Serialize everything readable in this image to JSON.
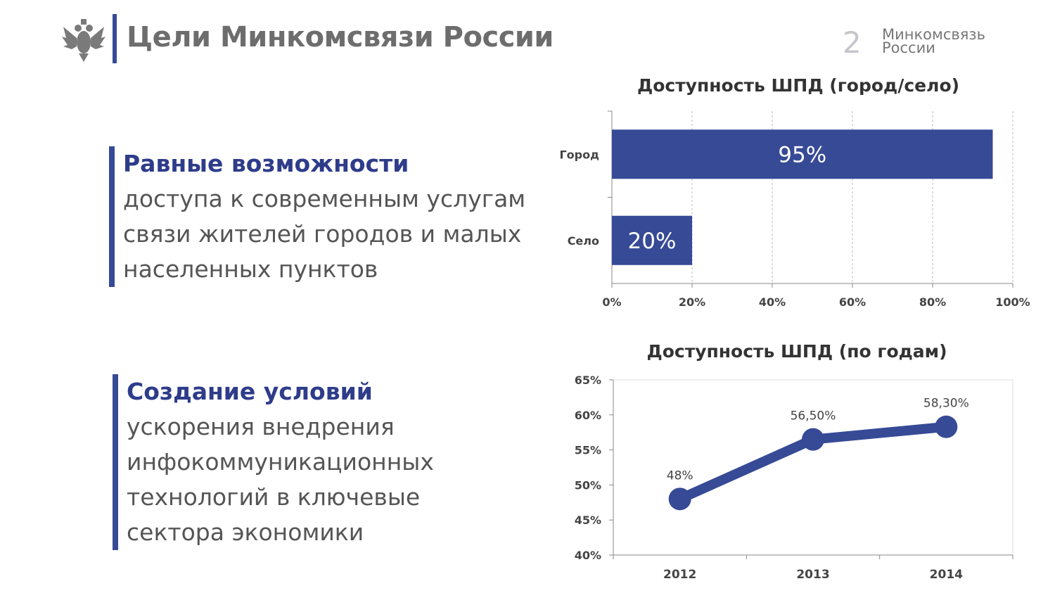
{
  "header": {
    "title": "Цели Минкомсвязи России",
    "page_number": "2",
    "brand_line1": "Минкомсвязь",
    "brand_line2": "России"
  },
  "blocks": [
    {
      "head": "Равные возможности",
      "body": "доступа к современным услугам связи жителей городов и малых населенных пунктов"
    },
    {
      "head": "Создание условий",
      "body": "ускорения внедрения инфокоммуникационных технологий в  ключевые сектора экономики"
    }
  ],
  "colors": {
    "accent": "#364a96",
    "title": "#6d6d6d",
    "text": "#555555"
  },
  "chart_data": [
    {
      "type": "bar",
      "orientation": "horizontal",
      "title": "Доступность ШПД (город/село)",
      "categories": [
        "Город",
        "Село"
      ],
      "values": [
        95,
        20
      ],
      "data_labels": [
        "95%",
        "20%"
      ],
      "xlim": [
        0,
        100
      ],
      "xticks": [
        "0%",
        "20%",
        "40%",
        "60%",
        "80%",
        "100%"
      ],
      "grid": true
    },
    {
      "type": "line",
      "title": "Доступность ШПД (по годам)",
      "categories": [
        "2012",
        "2013",
        "2014"
      ],
      "values": [
        48,
        56.5,
        58.3
      ],
      "data_labels": [
        "48%",
        "56,50%",
        "58,30%"
      ],
      "ylim": [
        40,
        65
      ],
      "yticks": [
        "40%",
        "45%",
        "50%",
        "55%",
        "60%",
        "65%"
      ],
      "grid": false
    }
  ]
}
